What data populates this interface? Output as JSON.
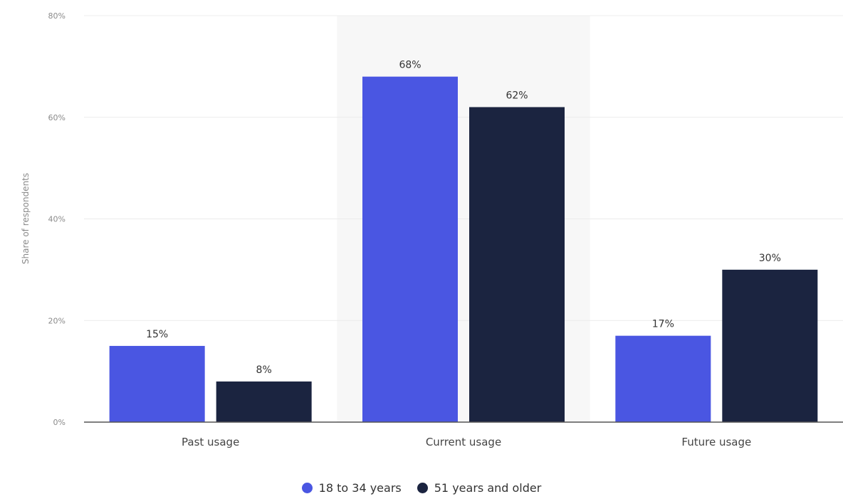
{
  "chart_data": {
    "type": "bar",
    "categories": [
      "Past usage",
      "Current usage",
      "Future usage"
    ],
    "series": [
      {
        "name": "18 to 34 years",
        "values": [
          15,
          68,
          17
        ],
        "labels": [
          "15%",
          "68%",
          "17%"
        ],
        "color": "#4a56e2"
      },
      {
        "name": "51 years and older",
        "values": [
          8,
          62,
          30
        ],
        "labels": [
          "8%",
          "62%",
          "30%"
        ],
        "color": "#1b2440"
      }
    ],
    "title": "",
    "xlabel": "",
    "ylabel": "Share of respondents",
    "ylim": [
      0,
      80
    ],
    "yticks": [
      0,
      20,
      40,
      60,
      80
    ],
    "ytick_labels": [
      "0%",
      "20%",
      "40%",
      "60%",
      "80%"
    ],
    "grid": true,
    "highlighted_category": "Current usage",
    "legend_position": "bottom-center"
  }
}
